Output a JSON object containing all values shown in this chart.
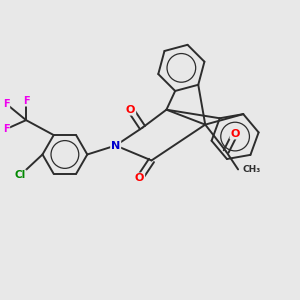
{
  "bg_color": "#e8e8e8",
  "bond_color": "#2d2d2d",
  "bond_width": 1.4,
  "atom_colors": {
    "O": "#ff0000",
    "N": "#0000cc",
    "F": "#ee00ee",
    "Cl": "#008800",
    "C": "#2d2d2d"
  },
  "figsize": [
    3.0,
    3.0
  ],
  "dpi": 100
}
